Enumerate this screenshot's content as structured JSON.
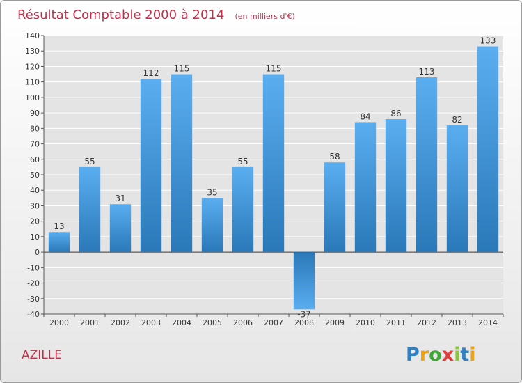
{
  "chart_data": {
    "type": "bar",
    "title": "Résultat Comptable 2000 à 2014",
    "subtitle": "(en milliers d'€)",
    "xlabel": "",
    "ylabel": "",
    "categories": [
      "2000",
      "2001",
      "2002",
      "2003",
      "2004",
      "2005",
      "2006",
      "2007",
      "2008",
      "2009",
      "2010",
      "2011",
      "2012",
      "2013",
      "2014"
    ],
    "values": [
      13,
      55,
      31,
      112,
      115,
      35,
      55,
      115,
      -37,
      58,
      84,
      86,
      113,
      82,
      133
    ],
    "ylim": [
      -40,
      140
    ],
    "ytick_step": 10,
    "grid": true,
    "bar_color": "#3d8fd0"
  },
  "commune": "AZILLE",
  "brand": {
    "letters": [
      "P",
      "r",
      "o",
      "x",
      "i",
      "t",
      "i"
    ],
    "colors": [
      "#2f7fc1",
      "#e8a317",
      "#3fa535",
      "#e23b3b",
      "#8cc63f",
      "#2f7fc1",
      "#e8a317"
    ]
  }
}
